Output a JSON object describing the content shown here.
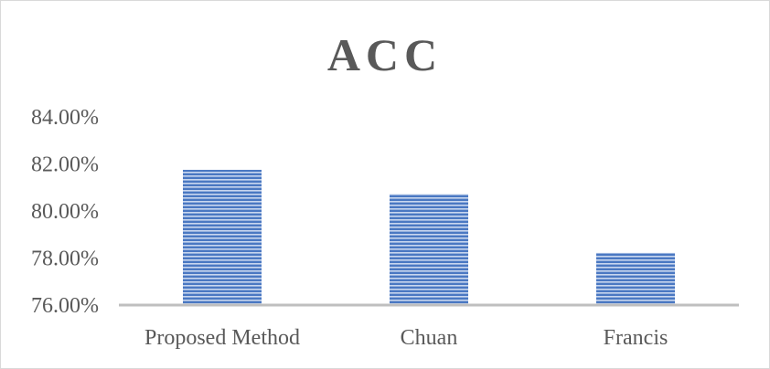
{
  "chart_data": {
    "type": "bar",
    "title": "ACC",
    "categories": [
      "Proposed Method",
      "Chuan",
      "Francis"
    ],
    "values": [
      81.75,
      80.72,
      78.22
    ],
    "ylim": [
      76,
      84
    ],
    "yticks": [
      76,
      78,
      80,
      82,
      84
    ],
    "ytick_labels": [
      "76.00%",
      "78.00%",
      "80.00%",
      "82.00%",
      "84.00%"
    ],
    "xlabel": "",
    "ylabel": "",
    "grid": false,
    "legend": "none",
    "colors": {
      "bar_fill": "#4a78c2",
      "bar_stripe": "#c9d7ef",
      "axis": "#bfbfbf",
      "text": "#595959"
    }
  }
}
